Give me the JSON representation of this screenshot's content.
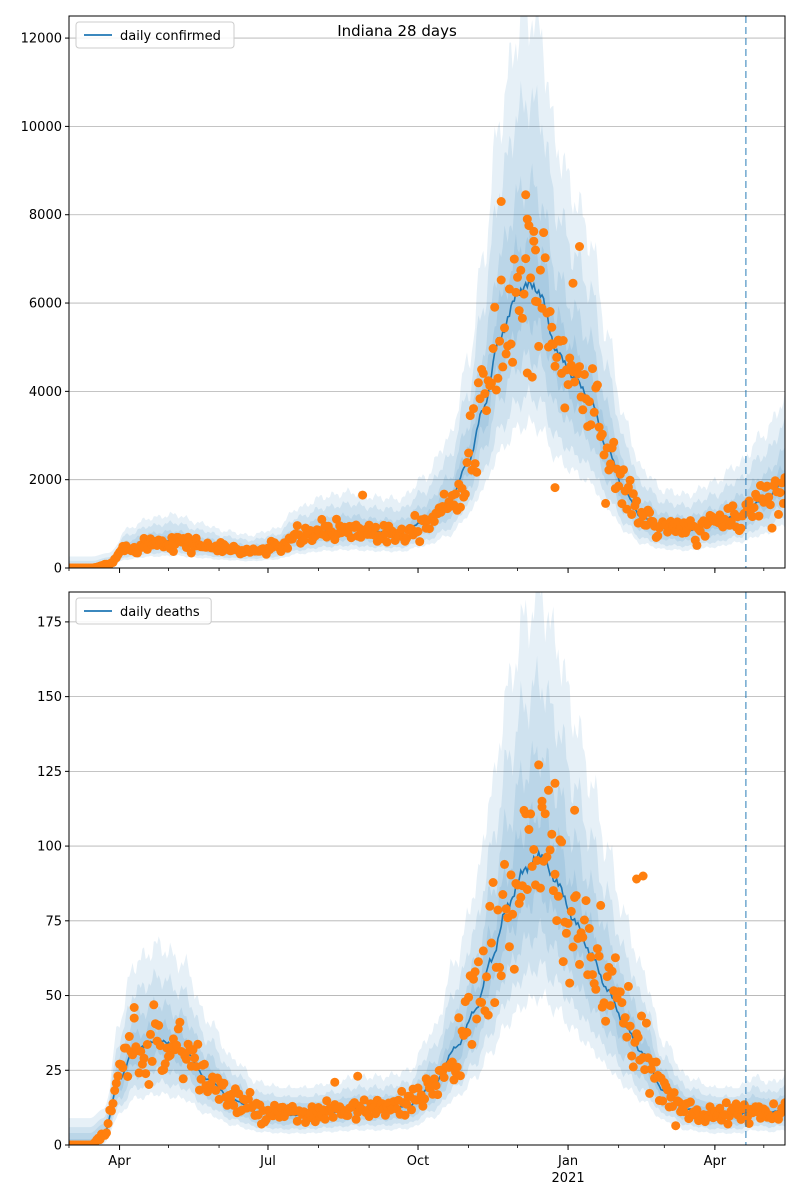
{
  "title": "Indiana 28 days",
  "colors": {
    "band": "#1f77b4",
    "line": "#1f77b4",
    "dots": "#ff7f0e",
    "grid": "#b0b0b0",
    "vline": "#1f77b4"
  },
  "x_axis": {
    "start": "2020-03-01",
    "end": "2021-05-14",
    "ticks": [
      {
        "date": "2020-04-01",
        "label": "Apr",
        "sub": ""
      },
      {
        "date": "2020-07-01",
        "label": "Jul",
        "sub": ""
      },
      {
        "date": "2020-10-01",
        "label": "Oct",
        "sub": ""
      },
      {
        "date": "2021-01-01",
        "label": "Jan",
        "sub": "2021"
      },
      {
        "date": "2021-04-01",
        "label": "Apr",
        "sub": ""
      }
    ],
    "vline_date": "2021-04-20"
  },
  "chart_data": [
    {
      "type": "line",
      "legend": "daily confirmed",
      "legend_position": "top-left",
      "grid": "horizontal",
      "ylim": [
        0,
        12500
      ],
      "yticks": [
        0,
        2000,
        4000,
        6000,
        8000,
        10000,
        12000
      ],
      "anchors": [
        [
          "2020-03-01",
          0
        ],
        [
          "2020-03-15",
          0
        ],
        [
          "2020-03-25",
          80
        ],
        [
          "2020-04-05",
          450
        ],
        [
          "2020-04-20",
          580
        ],
        [
          "2020-05-05",
          620
        ],
        [
          "2020-05-20",
          520
        ],
        [
          "2020-06-05",
          430
        ],
        [
          "2020-06-20",
          380
        ],
        [
          "2020-07-05",
          450
        ],
        [
          "2020-07-20",
          700
        ],
        [
          "2020-08-05",
          830
        ],
        [
          "2020-08-20",
          880
        ],
        [
          "2020-09-05",
          820
        ],
        [
          "2020-09-20",
          800
        ],
        [
          "2020-10-05",
          1050
        ],
        [
          "2020-10-20",
          1500
        ],
        [
          "2020-11-01",
          2400
        ],
        [
          "2020-11-10",
          3600
        ],
        [
          "2020-11-20",
          5200
        ],
        [
          "2020-12-01",
          6200
        ],
        [
          "2020-12-08",
          6450
        ],
        [
          "2020-12-15",
          6200
        ],
        [
          "2020-12-25",
          4900
        ],
        [
          "2021-01-05",
          4300
        ],
        [
          "2021-01-15",
          3800
        ],
        [
          "2021-01-25",
          2700
        ],
        [
          "2021-02-05",
          1700
        ],
        [
          "2021-02-15",
          1150
        ],
        [
          "2021-03-01",
          900
        ],
        [
          "2021-03-15",
          850
        ],
        [
          "2021-04-01",
          1000
        ],
        [
          "2021-04-15",
          1200
        ],
        [
          "2021-05-01",
          1550
        ],
        [
          "2021-05-14",
          1950
        ]
      ],
      "band_multipliers": [
        1.15,
        1.35,
        1.65,
        1.95
      ],
      "band_min": [
        40,
        90,
        160,
        260
      ],
      "dots_scatter": 0.15,
      "dots_outliers": [
        [
          "2020-11-21",
          8300
        ],
        [
          "2020-12-06",
          8450
        ],
        [
          "2020-12-07",
          7900
        ],
        [
          "2020-12-11",
          7400
        ],
        [
          "2020-12-12",
          7200
        ],
        [
          "2021-01-08",
          7280
        ],
        [
          "2020-12-24",
          1820
        ],
        [
          "2020-08-28",
          1650
        ],
        [
          "2020-12-22",
          5450
        ],
        [
          "2021-01-04",
          6450
        ]
      ]
    },
    {
      "type": "line",
      "legend": "daily deaths",
      "legend_position": "top-left",
      "grid": "horizontal",
      "ylim": [
        0,
        185
      ],
      "yticks": [
        0,
        25,
        50,
        75,
        100,
        125,
        150,
        175
      ],
      "anchors": [
        [
          "2020-03-01",
          0
        ],
        [
          "2020-03-14",
          0
        ],
        [
          "2020-03-22",
          3
        ],
        [
          "2020-04-01",
          22
        ],
        [
          "2020-04-10",
          32
        ],
        [
          "2020-04-25",
          35
        ],
        [
          "2020-05-10",
          32
        ],
        [
          "2020-05-25",
          22
        ],
        [
          "2020-06-10",
          15
        ],
        [
          "2020-06-25",
          11
        ],
        [
          "2020-07-10",
          10
        ],
        [
          "2020-07-25",
          10
        ],
        [
          "2020-08-10",
          11
        ],
        [
          "2020-08-25",
          12
        ],
        [
          "2020-09-10",
          12
        ],
        [
          "2020-09-25",
          13
        ],
        [
          "2020-10-10",
          20
        ],
        [
          "2020-10-25",
          33
        ],
        [
          "2020-11-05",
          45
        ],
        [
          "2020-11-15",
          62
        ],
        [
          "2020-11-25",
          80
        ],
        [
          "2020-12-05",
          92
        ],
        [
          "2020-12-15",
          97
        ],
        [
          "2020-12-25",
          88
        ],
        [
          "2021-01-05",
          75
        ],
        [
          "2021-01-15",
          64
        ],
        [
          "2021-01-25",
          52
        ],
        [
          "2021-02-05",
          40
        ],
        [
          "2021-02-15",
          31
        ],
        [
          "2021-03-01",
          18
        ],
        [
          "2021-03-15",
          12
        ],
        [
          "2021-04-01",
          10
        ],
        [
          "2021-04-15",
          10
        ],
        [
          "2021-04-25",
          12
        ],
        [
          "2021-05-05",
          11
        ],
        [
          "2021-05-14",
          12
        ]
      ],
      "band_multipliers": [
        1.15,
        1.35,
        1.6,
        1.9
      ],
      "band_min": [
        2,
        4,
        6,
        9
      ],
      "dots_scatter": 0.17,
      "dots_outliers": [
        [
          "2020-12-24",
          121
        ],
        [
          "2021-01-05",
          112
        ],
        [
          "2020-12-16",
          115
        ],
        [
          "2021-02-12",
          89
        ],
        [
          "2021-02-16",
          90
        ],
        [
          "2020-08-25",
          23
        ],
        [
          "2020-08-11",
          21
        ],
        [
          "2020-04-10",
          46
        ]
      ]
    }
  ]
}
